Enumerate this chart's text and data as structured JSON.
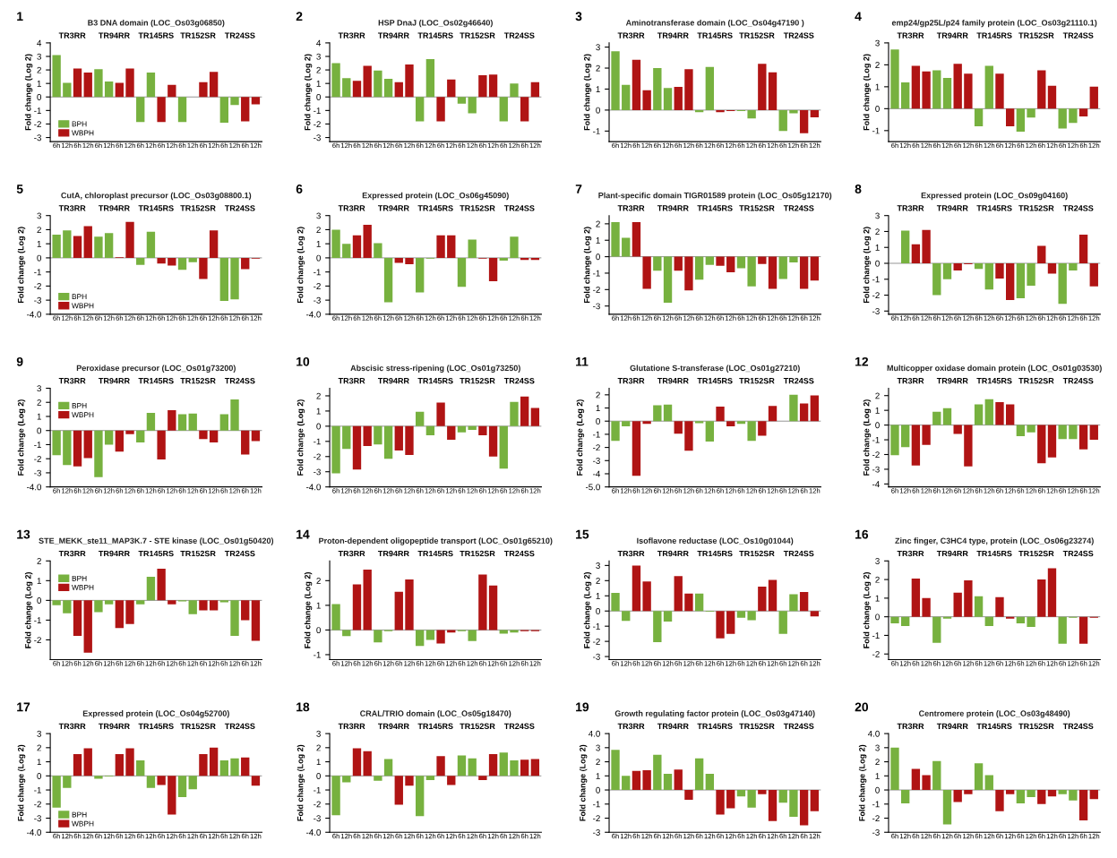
{
  "chart_data": [
    {
      "type": "bar",
      "title": "B3 DNA domain (LOC_Os03g06850)",
      "annotations": [
        "1",
        "TR3RR",
        "TR94RR",
        "TR145RS",
        "TR152SR",
        "TR24SS"
      ],
      "ylabel": "Fold change (Log 2)",
      "ylim": [
        -3.3,
        4
      ],
      "yticks": [
        -3,
        -2,
        -1,
        0,
        1,
        2,
        3,
        4
      ],
      "legend": "lower left",
      "ref_lines": [
        {
          "axis": "y",
          "value": 0
        }
      ],
      "categories": [
        "6h",
        "12h",
        "6h",
        "12h",
        "6h",
        "12h",
        "6h",
        "12h",
        "6h",
        "12h",
        "6h",
        "12h",
        "6h",
        "12h",
        "6h",
        "12h",
        "6h",
        "12h",
        "6h",
        "12h"
      ],
      "series": [
        {
          "name": "BPH",
          "color": "#77b13f",
          "values": [
            3.1,
            1.05,
            null,
            null,
            2.05,
            1.15,
            null,
            null,
            -1.85,
            1.8,
            null,
            null,
            -1.85,
            0,
            null,
            null,
            -1.9,
            -0.6,
            null,
            null
          ]
        },
        {
          "name": "WBPH",
          "color": "#b01414",
          "values": [
            null,
            null,
            2.1,
            1.8,
            null,
            null,
            1.05,
            2.1,
            null,
            null,
            -1.85,
            0.9,
            null,
            null,
            1.1,
            1.85,
            null,
            null,
            -1.8,
            -0.55
          ]
        }
      ]
    },
    {
      "type": "bar",
      "title": "HSP DnaJ (LOC_Os02g46640)",
      "annotations": [
        "2",
        "TR3RR",
        "TR94RR",
        "TR145RS",
        "TR152SR",
        "TR24SS"
      ],
      "ylabel": "Fold change (Log 2)",
      "ylim": [
        -3.3,
        4
      ],
      "yticks": [
        -3,
        -2,
        -1,
        0,
        1,
        2,
        3,
        4
      ],
      "ref_lines": [
        {
          "axis": "y",
          "value": 0
        }
      ],
      "categories": [
        "6h",
        "12h",
        "6h",
        "12h",
        "6h",
        "12h",
        "6h",
        "12h",
        "6h",
        "12h",
        "6h",
        "12h",
        "6h",
        "12h",
        "6h",
        "12h",
        "6h",
        "12h",
        "6h",
        "12h"
      ],
      "series": [
        {
          "color": "#77b13f",
          "values": [
            2.5,
            1.4,
            null,
            null,
            1.95,
            1.35,
            null,
            null,
            -1.8,
            2.8,
            null,
            null,
            -0.5,
            -1.2,
            null,
            null,
            -1.8,
            1.0,
            null,
            null
          ]
        },
        {
          "color": "#b01414",
          "values": [
            null,
            null,
            1.2,
            2.3,
            null,
            null,
            1.1,
            2.4,
            null,
            null,
            -1.8,
            1.3,
            null,
            null,
            1.6,
            1.65,
            null,
            null,
            -1.8,
            1.1
          ]
        }
      ]
    },
    {
      "type": "bar",
      "title": "Aminotransferase domain (LOC_Os04g47190 )",
      "annotations": [
        "3",
        "TR3RR",
        "TR94RR",
        "TR145RS",
        "TR152SR",
        "TR24SS"
      ],
      "ylabel": "Fold change (Log 2)",
      "ylim": [
        -1.5,
        3.2
      ],
      "yticks": [
        -1,
        0,
        1,
        2,
        3
      ],
      "ref_lines": [
        {
          "axis": "y",
          "value": 0
        }
      ],
      "categories": [
        "6h",
        "12h",
        "6h",
        "12h",
        "6h",
        "12h",
        "6h",
        "12h",
        "6h",
        "12h",
        "6h",
        "12h",
        "6h",
        "12h",
        "6h",
        "12h",
        "6h",
        "12h",
        "6h",
        "12h"
      ],
      "series": [
        {
          "color": "#77b13f",
          "values": [
            2.8,
            1.2,
            null,
            null,
            2.0,
            1.05,
            null,
            null,
            -0.1,
            2.05,
            null,
            null,
            -0.05,
            -0.4,
            null,
            null,
            -1.0,
            -0.15,
            null,
            null
          ]
        },
        {
          "color": "#b01414",
          "values": [
            null,
            null,
            2.4,
            0.95,
            null,
            null,
            1.1,
            1.95,
            null,
            null,
            -0.1,
            -0.05,
            null,
            null,
            2.2,
            1.8,
            null,
            null,
            -1.1,
            -0.35
          ]
        }
      ]
    },
    {
      "type": "bar",
      "title": "emp24/gp25L/p24 family protein (LOC_Os03g21110.1)",
      "annotations": [
        "4",
        "TR3RR",
        "TR94RR",
        "TR145RS",
        "TR152SR",
        "TR24SS"
      ],
      "ylabel": "Fold change (Log 2)",
      "ylim": [
        -1.5,
        3
      ],
      "yticks": [
        -1,
        0,
        1,
        2,
        3
      ],
      "ref_lines": [
        {
          "axis": "y",
          "value": 0
        }
      ],
      "categories": [
        "6h",
        "12h",
        "6h",
        "12h",
        "6h",
        "12h",
        "6h",
        "12h",
        "6h",
        "12h",
        "6h",
        "12h",
        "6h",
        "12h",
        "6h",
        "12h",
        "6h",
        "12h",
        "6h",
        "12h"
      ],
      "series": [
        {
          "color": "#77b13f",
          "values": [
            2.7,
            1.2,
            null,
            null,
            1.75,
            1.4,
            null,
            null,
            -0.8,
            1.95,
            null,
            null,
            -1.05,
            -0.4,
            null,
            null,
            -0.9,
            -0.65,
            null,
            null
          ]
        },
        {
          "color": "#b01414",
          "values": [
            null,
            null,
            1.95,
            1.7,
            null,
            null,
            2.05,
            1.6,
            null,
            null,
            1.6,
            -0.8,
            null,
            null,
            1.75,
            1.05,
            null,
            null,
            -0.35,
            1.0
          ]
        }
      ]
    },
    {
      "type": "bar",
      "title": "CutA, chloroplast precursor (LOC_Os03g08800.1)",
      "annotations": [
        "5",
        "TR3RR",
        "TR94RR",
        "TR145RS",
        "TR152SR",
        "TR24SS"
      ],
      "ylabel": "Fold change (Log 2)",
      "ylim": [
        -4,
        3
      ],
      "yticks": [
        {
          "value": -4,
          "label": "-4.0"
        },
        -3,
        -2,
        -1,
        0,
        1,
        2,
        3
      ],
      "legend": "lower left",
      "ref_lines": [
        {
          "axis": "y",
          "value": 0
        }
      ],
      "categories": [
        "6h",
        "12h",
        "6h",
        "12h",
        "6h",
        "12h",
        "6h",
        "12h",
        "6h",
        "12h",
        "6h",
        "12h",
        "6h",
        "12h",
        "6h",
        "12h",
        "6h",
        "12h",
        "6h",
        "12h"
      ],
      "series": [
        {
          "name": "BPH",
          "color": "#77b13f",
          "values": [
            1.65,
            1.95,
            null,
            null,
            1.5,
            1.75,
            null,
            null,
            -0.5,
            1.85,
            null,
            null,
            -0.85,
            -0.3,
            null,
            null,
            -3.05,
            -2.95,
            null,
            null
          ]
        },
        {
          "name": "WBPH",
          "color": "#b01414",
          "values": [
            null,
            null,
            1.55,
            2.25,
            null,
            null,
            0.05,
            2.55,
            null,
            null,
            -0.4,
            -0.55,
            null,
            null,
            -1.5,
            1.95,
            null,
            null,
            -0.8,
            -0.05
          ]
        }
      ]
    },
    {
      "type": "bar",
      "title": "Expressed protein (LOC_Os06g45090)",
      "annotations": [
        "6",
        "TR3RR",
        "TR94RR",
        "TR145RS",
        "TR152SR",
        "TR24SS"
      ],
      "ylabel": "Fold change (Log 2)",
      "ylim": [
        -4,
        3
      ],
      "yticks": [
        {
          "value": -4,
          "label": "-4.0"
        },
        -3,
        -2,
        -1,
        0,
        1,
        2,
        3
      ],
      "ref_lines": [
        {
          "axis": "y",
          "value": 0
        }
      ],
      "categories": [
        "6h",
        "12h",
        "6h",
        "12h",
        "6h",
        "12h",
        "6h",
        "12h",
        "6h",
        "12h",
        "6h",
        "12h",
        "6h",
        "12h",
        "6h",
        "12h",
        "6h",
        "12h",
        "6h",
        "12h"
      ],
      "series": [
        {
          "color": "#77b13f",
          "values": [
            2.0,
            1.0,
            null,
            null,
            1.05,
            -3.15,
            null,
            null,
            -2.45,
            -0.05,
            null,
            null,
            -2.05,
            1.3,
            null,
            null,
            -0.2,
            1.5,
            null,
            null
          ]
        },
        {
          "color": "#b01414",
          "values": [
            null,
            null,
            1.6,
            2.35,
            null,
            null,
            -0.35,
            -0.45,
            null,
            null,
            1.6,
            1.6,
            null,
            null,
            -0.05,
            -1.65,
            null,
            null,
            -0.15,
            -0.15
          ]
        }
      ]
    },
    {
      "type": "bar",
      "title": "Plant-specific domain TIGR01589 protein (LOC_Os05g12170)",
      "annotations": [
        "7",
        "TR3RR",
        "TR94RR",
        "TR145RS",
        "TR152SR",
        "TR24SS"
      ],
      "ylabel": "Fold change (Log 2)",
      "ylim": [
        -3.5,
        2.5
      ],
      "yticks": [
        -3,
        -2,
        -1,
        0,
        1,
        2
      ],
      "ref_lines": [
        {
          "axis": "y",
          "value": 0
        }
      ],
      "categories": [
        "6h",
        "12h",
        "6h",
        "12h",
        "6h",
        "12h",
        "6h",
        "12h",
        "6h",
        "12h",
        "6h",
        "12h",
        "6h",
        "12h",
        "6h",
        "12h",
        "6h",
        "12h",
        "6h",
        "12h"
      ],
      "series": [
        {
          "color": "#77b13f",
          "values": [
            2.1,
            1.15,
            null,
            null,
            -0.85,
            -2.8,
            null,
            null,
            -1.4,
            -0.5,
            null,
            null,
            -0.7,
            -1.8,
            null,
            null,
            -1.35,
            -0.35,
            null,
            null
          ]
        },
        {
          "color": "#b01414",
          "values": [
            null,
            null,
            2.1,
            -1.95,
            null,
            null,
            -0.85,
            -2.05,
            null,
            null,
            -0.55,
            -0.95,
            null,
            null,
            -0.45,
            -1.95,
            null,
            null,
            -1.95,
            -1.45
          ]
        }
      ]
    },
    {
      "type": "bar",
      "title": "Expressed protein (LOC_Os09g04160)",
      "annotations": [
        "8",
        "TR3RR",
        "TR94RR",
        "TR145RS",
        "TR152SR",
        "TR24SS"
      ],
      "ylabel": "Fold change (Log 2)",
      "ylim": [
        -3.2,
        3
      ],
      "yticks": [
        -3,
        -2,
        -1,
        0,
        1,
        2,
        3
      ],
      "ref_lines": [
        {
          "axis": "y",
          "value": 0
        }
      ],
      "categories": [
        "6h",
        "12h",
        "6h",
        "12h",
        "6h",
        "12h",
        "6h",
        "12h",
        "6h",
        "12h",
        "6h",
        "12h",
        "6h",
        "12h",
        "6h",
        "12h",
        "6h",
        "12h",
        "6h",
        "12h"
      ],
      "series": [
        {
          "color": "#77b13f",
          "values": [
            0,
            2.05,
            null,
            null,
            -2.0,
            -1.0,
            null,
            null,
            -0.35,
            -1.65,
            null,
            null,
            -2.2,
            -1.4,
            null,
            null,
            -2.55,
            -0.45,
            null,
            null
          ]
        },
        {
          "color": "#b01414",
          "values": [
            null,
            null,
            1.2,
            2.1,
            null,
            null,
            -0.45,
            -0.05,
            null,
            null,
            -0.95,
            -2.3,
            null,
            null,
            1.1,
            -0.65,
            null,
            null,
            1.8,
            -1.45
          ]
        }
      ]
    },
    {
      "type": "bar",
      "title": "Peroxidase precursor (LOC_Os01g73200)",
      "annotations": [
        "9",
        "TR3RR",
        "TR94RR",
        "TR145RS",
        "TR152SR",
        "TR24SS"
      ],
      "ylabel": "Fold change (Log 2)",
      "ylim": [
        -4,
        3
      ],
      "yticks": [
        {
          "value": -4,
          "label": "-4.0"
        },
        -3,
        -2,
        -1,
        0,
        1,
        2,
        3
      ],
      "legend": "upper left",
      "ref_lines": [
        {
          "axis": "y",
          "value": 0
        }
      ],
      "categories": [
        "6h",
        "12h",
        "6h",
        "12h",
        "6h",
        "12h",
        "6h",
        "12h",
        "6h",
        "12h",
        "6h",
        "12h",
        "6h",
        "12h",
        "6h",
        "12h",
        "6h",
        "12h",
        "6h",
        "12h"
      ],
      "series": [
        {
          "name": "BPH",
          "color": "#77b13f",
          "values": [
            -1.75,
            -2.45,
            null,
            null,
            -3.3,
            -1.0,
            null,
            null,
            -0.85,
            1.25,
            null,
            null,
            1.15,
            1.2,
            null,
            null,
            1.15,
            2.2,
            null,
            null
          ]
        },
        {
          "name": "WBPH",
          "color": "#b01414",
          "values": [
            null,
            null,
            -2.55,
            -1.95,
            null,
            null,
            -1.5,
            -0.25,
            null,
            null,
            -2.05,
            1.45,
            null,
            null,
            -0.6,
            -0.85,
            null,
            null,
            -1.7,
            -0.75
          ]
        }
      ]
    },
    {
      "type": "bar",
      "title": "Abscisic stress-ripening (LOC_Os01g73250)",
      "annotations": [
        "10",
        "TR3RR",
        "TR94RR",
        "TR145RS",
        "TR152SR",
        "TR24SS"
      ],
      "ylabel": "Fold change (Log 2)",
      "ylim": [
        -4,
        2.5
      ],
      "yticks": [
        {
          "value": -4,
          "label": "-4.0"
        },
        -3,
        -2,
        -1,
        0,
        1,
        2
      ],
      "ref_lines": [
        {
          "axis": "y",
          "value": 0
        }
      ],
      "categories": [
        "6h",
        "12h",
        "6h",
        "12h",
        "6h",
        "12h",
        "6h",
        "12h",
        "6h",
        "12h",
        "6h",
        "12h",
        "6h",
        "12h",
        "6h",
        "12h",
        "6h",
        "12h",
        "6h",
        "12h"
      ],
      "series": [
        {
          "color": "#77b13f",
          "values": [
            -3.1,
            -1.5,
            null,
            null,
            -1.2,
            -2.15,
            null,
            null,
            0.95,
            -0.6,
            null,
            null,
            -0.4,
            -0.25,
            null,
            null,
            -2.8,
            1.6,
            null,
            null
          ]
        },
        {
          "color": "#b01414",
          "values": [
            null,
            null,
            -2.85,
            -1.3,
            null,
            null,
            -1.6,
            -1.9,
            null,
            null,
            1.55,
            -0.9,
            null,
            null,
            -0.6,
            -2.0,
            null,
            null,
            1.95,
            1.2
          ]
        }
      ]
    },
    {
      "type": "bar",
      "title": "Glutatione S-transferase (LOC_Os01g27210)",
      "annotations": [
        "11",
        "TR3RR",
        "TR94RR",
        "TR145RS",
        "TR152SR",
        "TR24SS"
      ],
      "ylabel": "Fold change (Log 2)",
      "ylim": [
        -5,
        2.5
      ],
      "yticks": [
        {
          "value": -5,
          "label": "-5.0"
        },
        -4,
        -3,
        -2,
        -1,
        0,
        1,
        2
      ],
      "ref_lines": [
        {
          "axis": "y",
          "value": 0
        }
      ],
      "categories": [
        "6h",
        "12h",
        "6h",
        "12h",
        "6h",
        "12h",
        "6h",
        "12h",
        "6h",
        "12h",
        "6h",
        "12h",
        "6h",
        "12h",
        "6h",
        "12h",
        "6h",
        "12h",
        "6h",
        "12h"
      ],
      "series": [
        {
          "color": "#77b13f",
          "values": [
            -1.5,
            -0.4,
            null,
            null,
            1.2,
            1.25,
            null,
            null,
            -0.15,
            -1.55,
            null,
            null,
            -0.2,
            -1.5,
            null,
            null,
            0,
            2.0,
            null,
            null
          ]
        },
        {
          "color": "#b01414",
          "values": [
            null,
            null,
            -4.15,
            -0.2,
            null,
            null,
            -0.95,
            -2.25,
            null,
            null,
            1.1,
            -0.4,
            null,
            null,
            -1.1,
            1.15,
            null,
            null,
            1.35,
            1.95
          ]
        }
      ]
    },
    {
      "type": "bar",
      "title": "Multicopper oxidase domain protein (LOC_Os01g03530)",
      "annotations": [
        "12",
        "TR3RR",
        "TR94RR",
        "TR145RS",
        "TR152SR",
        "TR24SS"
      ],
      "ylabel": "Fold change (Log 2)",
      "ylim": [
        -4.2,
        2.5
      ],
      "yticks": [
        -4,
        -3,
        -2,
        -1,
        0,
        1,
        2
      ],
      "ref_lines": [
        {
          "axis": "y",
          "value": 0
        }
      ],
      "categories": [
        "6h",
        "12h",
        "6h",
        "12h",
        "6h",
        "12h",
        "6h",
        "12h",
        "6h",
        "12h",
        "6h",
        "12h",
        "6h",
        "12h",
        "6h",
        "12h",
        "6h",
        "12h",
        "6h",
        "12h"
      ],
      "series": [
        {
          "color": "#77b13f",
          "values": [
            -2.05,
            -1.5,
            null,
            null,
            0.9,
            1.15,
            null,
            null,
            1.4,
            1.75,
            null,
            null,
            -0.75,
            -0.5,
            null,
            null,
            -0.95,
            -0.95,
            null,
            null
          ]
        },
        {
          "color": "#b01414",
          "values": [
            null,
            null,
            -2.75,
            -1.35,
            null,
            null,
            -0.6,
            -2.8,
            null,
            null,
            1.55,
            1.4,
            null,
            null,
            -2.6,
            -2.2,
            null,
            null,
            -1.65,
            -1.0
          ]
        }
      ]
    },
    {
      "type": "bar",
      "title": "STE_MEKK_ste11_MAP3K.7 - STE kinase (LOC_Os01g50420)",
      "annotations": [
        "13",
        "TR3RR",
        "TR94RR",
        "TR145RS",
        "TR152SR",
        "TR24SS"
      ],
      "ylabel": "Fold change (Log 2)",
      "ylim": [
        -3,
        2
      ],
      "yticks": [
        -2,
        -1,
        0,
        1,
        2
      ],
      "legend": "upper left",
      "ref_lines": [
        {
          "axis": "y",
          "value": 0
        }
      ],
      "categories": [
        "6h",
        "12h",
        "6h",
        "12h",
        "6h",
        "12h",
        "6h",
        "12h",
        "6h",
        "12h",
        "6h",
        "12h",
        "6h",
        "12h",
        "6h",
        "12h",
        "6h",
        "12h",
        "6h",
        "12h"
      ],
      "series": [
        {
          "name": "BPH",
          "color": "#77b13f",
          "values": [
            -0.25,
            -0.65,
            null,
            null,
            -0.6,
            -0.2,
            null,
            null,
            -0.2,
            1.2,
            null,
            null,
            -0.05,
            -0.7,
            null,
            null,
            -0.1,
            -1.8,
            null,
            null
          ]
        },
        {
          "name": "WBPH",
          "color": "#b01414",
          "values": [
            null,
            null,
            -1.8,
            -2.65,
            null,
            null,
            -1.4,
            -1.2,
            null,
            null,
            1.6,
            -0.2,
            null,
            null,
            -0.5,
            -0.5,
            null,
            null,
            -1.0,
            -2.05
          ]
        }
      ]
    },
    {
      "type": "bar",
      "title": "Proton-dependent oligopeptide transport (LOC_Os01g65210)",
      "annotations": [
        "14",
        "TR3RR",
        "TR94RR",
        "TR145RS",
        "TR152SR",
        "TR24SS"
      ],
      "ylabel": "Fold change (Log 2)",
      "ylim": [
        -1.2,
        2.8
      ],
      "yticks": [
        -1,
        0,
        1,
        2
      ],
      "ref_lines": [
        {
          "axis": "y",
          "value": 0
        }
      ],
      "categories": [
        "6h",
        "12h",
        "6h",
        "12h",
        "6h",
        "12h",
        "6h",
        "12h",
        "6h",
        "12h",
        "6h",
        "12h",
        "6h",
        "12h",
        "6h",
        "12h",
        "6h",
        "12h",
        "6h",
        "12h"
      ],
      "series": [
        {
          "color": "#77b13f",
          "values": [
            1.05,
            -0.25,
            null,
            null,
            -0.5,
            -0.05,
            null,
            null,
            -0.65,
            -0.4,
            null,
            null,
            -0.05,
            -0.45,
            null,
            null,
            -0.15,
            -0.1,
            null,
            null
          ]
        },
        {
          "color": "#b01414",
          "values": [
            null,
            null,
            1.85,
            2.45,
            null,
            null,
            1.55,
            2.05,
            null,
            null,
            -0.55,
            -0.1,
            null,
            null,
            2.25,
            1.8,
            null,
            null,
            -0.05,
            -0.05
          ]
        }
      ]
    },
    {
      "type": "bar",
      "title": "Isoflavone reductase (LOC_Os10g01044)",
      "annotations": [
        "15",
        "TR3RR",
        "TR94RR",
        "TR145RS",
        "TR152SR",
        "TR24SS"
      ],
      "ylabel": "Fold change (Log 2)",
      "ylim": [
        -3.2,
        3.3
      ],
      "yticks": [
        -3,
        -2,
        -1,
        0,
        1,
        2,
        3
      ],
      "ref_lines": [
        {
          "axis": "y",
          "value": 0
        }
      ],
      "categories": [
        "6h",
        "12h",
        "6h",
        "12h",
        "6h",
        "12h",
        "6h",
        "12h",
        "6h",
        "12h",
        "6h",
        "12h",
        "6h",
        "12h",
        "6h",
        "12h",
        "6h",
        "12h",
        "6h",
        "12h"
      ],
      "series": [
        {
          "color": "#77b13f",
          "values": [
            1.2,
            -0.65,
            null,
            null,
            -2.05,
            -0.7,
            null,
            null,
            1.15,
            -0.05,
            null,
            null,
            -0.45,
            -0.6,
            null,
            null,
            -1.5,
            1.1,
            null,
            null
          ]
        },
        {
          "color": "#b01414",
          "values": [
            null,
            null,
            3.0,
            1.95,
            null,
            null,
            2.3,
            1.15,
            null,
            null,
            -1.8,
            -1.5,
            null,
            null,
            1.6,
            2.05,
            null,
            null,
            1.25,
            -0.35
          ]
        }
      ]
    },
    {
      "type": "bar",
      "title": "Zinc finger, C3HC4 type, protein (LOC_Os06g23274)",
      "annotations": [
        "16",
        "TR3RR",
        "TR94RR",
        "TR145RS",
        "TR152SR",
        "TR24SS"
      ],
      "ylabel": "Fold change (Log 2)",
      "ylim": [
        -2.3,
        3
      ],
      "yticks": [
        -2,
        -1,
        0,
        1,
        2,
        3
      ],
      "ref_lines": [
        {
          "axis": "y",
          "value": 0
        }
      ],
      "categories": [
        "6h",
        "12h",
        "6h",
        "12h",
        "6h",
        "12h",
        "6h",
        "12h",
        "6h",
        "12h",
        "6h",
        "12h",
        "6h",
        "12h",
        "6h",
        "12h",
        "6h",
        "12h",
        "6h",
        "12h"
      ],
      "series": [
        {
          "color": "#77b13f",
          "values": [
            -0.35,
            -0.5,
            null,
            null,
            -1.4,
            -0.1,
            null,
            null,
            1.1,
            -0.5,
            null,
            null,
            -0.35,
            -0.55,
            null,
            null,
            -1.45,
            -0.05,
            null,
            null
          ]
        },
        {
          "color": "#b01414",
          "values": [
            null,
            null,
            2.05,
            1.0,
            null,
            null,
            1.3,
            1.95,
            null,
            null,
            1.05,
            -0.1,
            null,
            null,
            2.0,
            2.6,
            null,
            null,
            -1.45,
            -0.05
          ]
        }
      ]
    },
    {
      "type": "bar",
      "title": "Expressed protein (LOC_Os04g52700)",
      "annotations": [
        "17",
        "TR3RR",
        "TR94RR",
        "TR145RS",
        "TR152SR",
        "TR24SS"
      ],
      "ylabel": "Fold change (Log 2)",
      "ylim": [
        -4,
        3
      ],
      "yticks": [
        {
          "value": -4,
          "label": "-4.0"
        },
        -3,
        -2,
        -1,
        0,
        1,
        2,
        3
      ],
      "legend": "lower left",
      "ref_lines": [
        {
          "axis": "y",
          "value": 0
        }
      ],
      "categories": [
        "6h",
        "12h",
        "6h",
        "12h",
        "6h",
        "12h",
        "6h",
        "12h",
        "6h",
        "12h",
        "6h",
        "12h",
        "6h",
        "12h",
        "6h",
        "12h",
        "6h",
        "12h",
        "6h",
        "12h"
      ],
      "series": [
        {
          "name": "BPH",
          "color": "#77b13f",
          "values": [
            -2.25,
            -0.85,
            null,
            null,
            -0.2,
            -0.05,
            null,
            null,
            1.1,
            -0.85,
            null,
            null,
            -1.5,
            -0.95,
            null,
            null,
            1.1,
            1.25,
            null,
            null
          ]
        },
        {
          "name": "WBPH",
          "color": "#b01414",
          "values": [
            null,
            null,
            1.55,
            1.95,
            null,
            null,
            1.55,
            1.95,
            null,
            null,
            -0.65,
            -2.75,
            null,
            null,
            1.55,
            2.0,
            null,
            null,
            1.3,
            -0.7
          ]
        }
      ]
    },
    {
      "type": "bar",
      "title": "CRAL/TRIO domain (LOC_Os05g18470)",
      "annotations": [
        "18",
        "TR3RR",
        "TR94RR",
        "TR145RS",
        "TR152SR",
        "TR24SS"
      ],
      "ylabel": "Fold change (Log 2)",
      "ylim": [
        -4,
        3
      ],
      "yticks": [
        {
          "value": -4,
          "label": "-4.0"
        },
        -3,
        -2,
        -1,
        0,
        1,
        2,
        3
      ],
      "ref_lines": [
        {
          "axis": "y",
          "value": 0
        }
      ],
      "categories": [
        "6h",
        "12h",
        "6h",
        "12h",
        "6h",
        "12h",
        "6h",
        "12h",
        "6h",
        "12h",
        "6h",
        "12h",
        "6h",
        "12h",
        "6h",
        "12h",
        "6h",
        "12h",
        "6h",
        "12h"
      ],
      "series": [
        {
          "color": "#77b13f",
          "values": [
            -2.8,
            -0.45,
            null,
            null,
            -0.35,
            1.2,
            null,
            null,
            -2.85,
            -0.3,
            null,
            null,
            1.45,
            1.25,
            null,
            null,
            1.65,
            1.1,
            null,
            null
          ]
        },
        {
          "color": "#b01414",
          "values": [
            null,
            null,
            1.95,
            1.75,
            null,
            null,
            -2.05,
            -0.7,
            null,
            null,
            1.4,
            -0.65,
            null,
            null,
            -0.3,
            1.55,
            null,
            null,
            1.15,
            1.2
          ]
        }
      ]
    },
    {
      "type": "bar",
      "title": "Growth regulating factor protein (LOC_Os03g47140)",
      "annotations": [
        "19",
        "TR3RR",
        "TR94RR",
        "TR145RS",
        "TR152SR",
        "TR24SS"
      ],
      "ylabel": "Fold change (Log 2)",
      "ylim": [
        -3,
        4
      ],
      "yticks": [
        -3,
        -2,
        -1,
        0,
        1,
        2,
        3,
        {
          "value": 4,
          "label": "4.0"
        }
      ],
      "ref_lines": [
        {
          "axis": "y",
          "value": 0
        }
      ],
      "categories": [
        "6h",
        "12h",
        "6h",
        "12h",
        "6h",
        "12h",
        "6h",
        "12h",
        "6h",
        "12h",
        "6h",
        "12h",
        "6h",
        "12h",
        "6h",
        "12h",
        "6h",
        "12h",
        "6h",
        "12h"
      ],
      "series": [
        {
          "color": "#77b13f",
          "values": [
            2.85,
            1.0,
            null,
            null,
            2.5,
            1.15,
            null,
            null,
            2.25,
            1.15,
            null,
            null,
            -0.45,
            -1.25,
            null,
            null,
            -0.9,
            -1.9,
            null,
            null
          ]
        },
        {
          "color": "#b01414",
          "values": [
            null,
            null,
            1.35,
            1.4,
            null,
            null,
            1.45,
            -0.7,
            null,
            null,
            -1.75,
            -1.3,
            null,
            null,
            -0.3,
            -2.2,
            null,
            null,
            -2.5,
            -1.5
          ]
        }
      ]
    },
    {
      "type": "bar",
      "title": "Centromere protein (LOC_Os03g48490)",
      "annotations": [
        "20",
        "TR3RR",
        "TR94RR",
        "TR145RS",
        "TR152SR",
        "TR24SS"
      ],
      "ylabel": "Fold change (Log 2)",
      "ylim": [
        -3,
        4
      ],
      "yticks": [
        -3,
        -2,
        -1,
        0,
        1,
        2,
        3,
        {
          "value": 4,
          "label": "4.0"
        }
      ],
      "ref_lines": [
        {
          "axis": "y",
          "value": 0
        }
      ],
      "categories": [
        "6h",
        "12h",
        "6h",
        "12h",
        "6h",
        "12h",
        "6h",
        "12h",
        "6h",
        "12h",
        "6h",
        "12h",
        "6h",
        "12h",
        "6h",
        "12h",
        "6h",
        "12h",
        "6h",
        "12h"
      ],
      "series": [
        {
          "color": "#77b13f",
          "values": [
            3.0,
            -0.95,
            null,
            null,
            2.05,
            -2.45,
            null,
            null,
            1.9,
            1.05,
            null,
            null,
            -0.95,
            -0.5,
            null,
            null,
            -0.3,
            -0.75,
            null,
            null
          ]
        },
        {
          "color": "#b01414",
          "values": [
            null,
            null,
            1.5,
            1.05,
            null,
            null,
            -0.85,
            -0.3,
            null,
            null,
            -1.5,
            -0.3,
            null,
            null,
            -1.0,
            -0.45,
            null,
            null,
            -2.15,
            -0.65
          ]
        }
      ]
    }
  ]
}
